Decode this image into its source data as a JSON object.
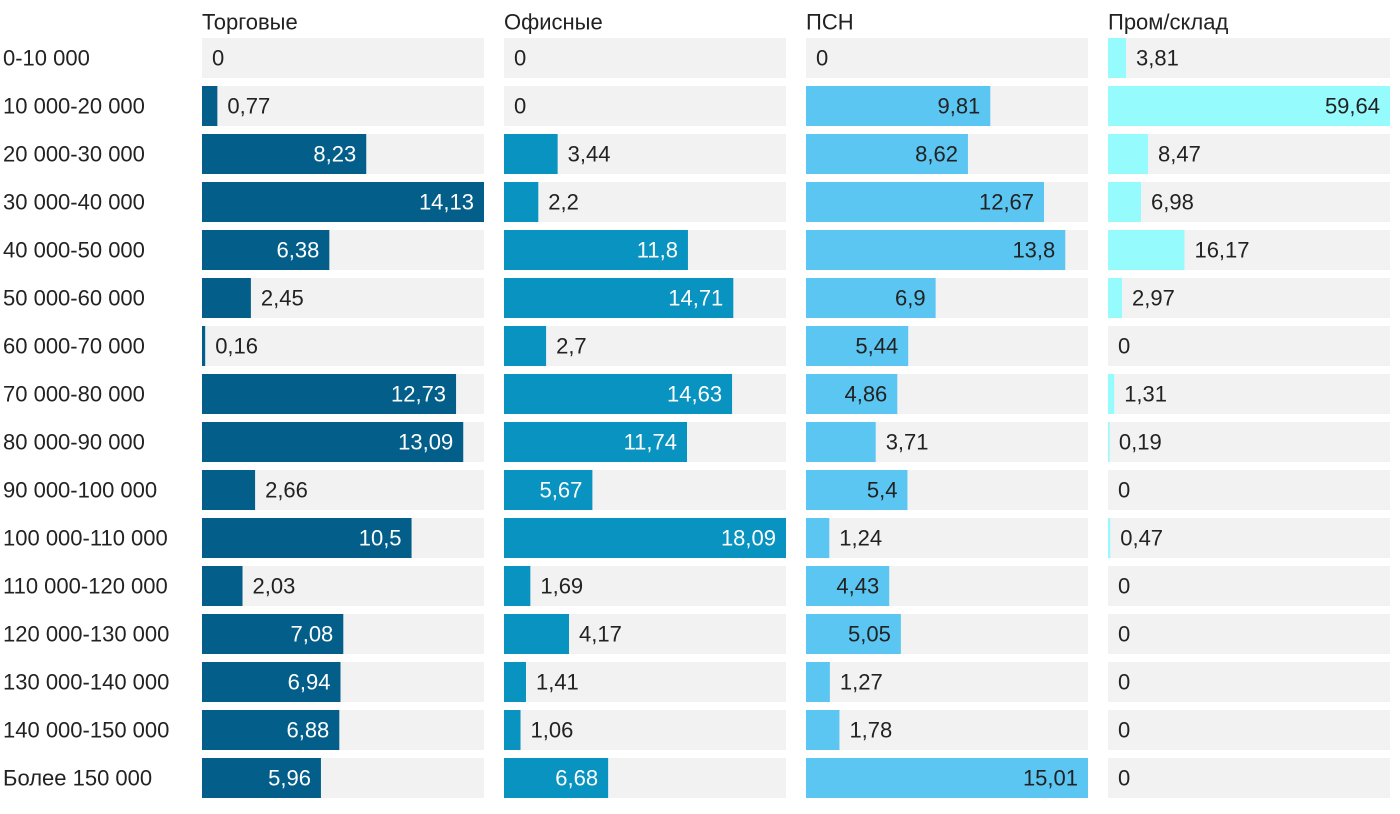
{
  "chart_data": {
    "type": "bar",
    "orientation": "horizontal",
    "layout": "small-multiples",
    "categories": [
      "0-10 000",
      "10 000-20 000",
      "20 000-30 000",
      "30 000-40 000",
      "40 000-50 000",
      "50 000-60 000",
      "60 000-70 000",
      "70 000-80 000",
      "80 000-90 000",
      "90 000-100 000",
      "100 000-110 000",
      "110 000-120 000",
      "120 000-130 000",
      "130 000-140 000",
      "140 000-150 000",
      "Более 150 000"
    ],
    "series": [
      {
        "name": "Торговые",
        "color": "#035f8a",
        "label_in_color": "#ffffff",
        "max": 14.13,
        "values": [
          0,
          0.77,
          8.23,
          14.13,
          6.38,
          2.45,
          0.16,
          12.73,
          13.09,
          2.66,
          10.5,
          2.03,
          7.08,
          6.94,
          6.88,
          5.96
        ],
        "labels": [
          "0",
          "0,77",
          "8,23",
          "14,13",
          "6,38",
          "2,45",
          "0,16",
          "12,73",
          "13,09",
          "2,66",
          "10,5",
          "2,03",
          "7,08",
          "6,94",
          "6,88",
          "5,96"
        ]
      },
      {
        "name": "Офисные",
        "color": "#0893c0",
        "label_in_color": "#ffffff",
        "max": 18.09,
        "values": [
          0,
          0,
          3.44,
          2.2,
          11.8,
          14.71,
          2.7,
          14.63,
          11.74,
          5.67,
          18.09,
          1.69,
          4.17,
          1.41,
          1.06,
          6.68
        ],
        "labels": [
          "0",
          "0",
          "3,44",
          "2,2",
          "11,8",
          "14,71",
          "2,7",
          "14,63",
          "11,74",
          "5,67",
          "18,09",
          "1,69",
          "4,17",
          "1,41",
          "1,06",
          "6,68"
        ]
      },
      {
        "name": "ПСН",
        "color": "#5cc6f2",
        "label_in_color": "#222222",
        "max": 15.01,
        "values": [
          0,
          9.81,
          8.62,
          12.67,
          13.8,
          6.9,
          5.44,
          4.86,
          3.71,
          5.4,
          1.24,
          4.43,
          5.05,
          1.27,
          1.78,
          15.01
        ],
        "labels": [
          "0",
          "9,81",
          "8,62",
          "12,67",
          "13,8",
          "6,9",
          "5,44",
          "4,86",
          "3,71",
          "5,4",
          "1,24",
          "4,43",
          "5,05",
          "1,27",
          "1,78",
          "15,01"
        ]
      },
      {
        "name": "Пром/склад",
        "color": "#96fbfd",
        "label_in_color": "#222222",
        "max": 59.64,
        "values": [
          3.81,
          59.64,
          8.47,
          6.98,
          16.17,
          2.97,
          0,
          1.31,
          0.19,
          0,
          0.47,
          0,
          0,
          0,
          0,
          0
        ],
        "labels": [
          "3,81",
          "59,64",
          "8,47",
          "6,98",
          "16,17",
          "2,97",
          "0",
          "1,31",
          "0,19",
          "0",
          "0,47",
          "0",
          "0",
          "0",
          "0",
          "0"
        ]
      }
    ],
    "track_color": "#f2f2f2",
    "grid": false,
    "legend": "none"
  }
}
